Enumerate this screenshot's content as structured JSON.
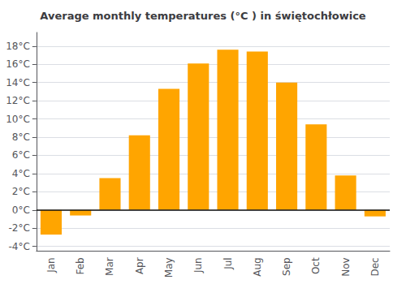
{
  "chart_data": {
    "type": "bar",
    "title": "Average monthly temperatures (°C ) in świętochłowice",
    "categories": [
      "Jan",
      "Feb",
      "Mar",
      "Apr",
      "May",
      "Jun",
      "Jul",
      "Aug",
      "Sep",
      "Oct",
      "Nov",
      "Dec"
    ],
    "values": [
      -2.7,
      -0.6,
      3.5,
      8.2,
      13.3,
      16.1,
      17.6,
      17.4,
      14.0,
      9.4,
      3.8,
      -0.7
    ],
    "color": "#FFA500",
    "ylim": [
      -4.5,
      19.5
    ],
    "yticks": [
      {
        "value": -4,
        "label": "-4°C"
      },
      {
        "value": -2,
        "label": "-2°C"
      },
      {
        "value": 0,
        "label": "0°C"
      },
      {
        "value": 2,
        "label": "2°C"
      },
      {
        "value": 4,
        "label": "4°C"
      },
      {
        "value": 6,
        "label": "6°C"
      },
      {
        "value": 8,
        "label": "8°C"
      },
      {
        "value": 10,
        "label": "10°C"
      },
      {
        "value": 12,
        "label": "12°C"
      },
      {
        "value": 14,
        "label": "14°C"
      },
      {
        "value": 16,
        "label": "16°C"
      },
      {
        "value": 18,
        "label": "18°C"
      }
    ],
    "grid": true
  }
}
